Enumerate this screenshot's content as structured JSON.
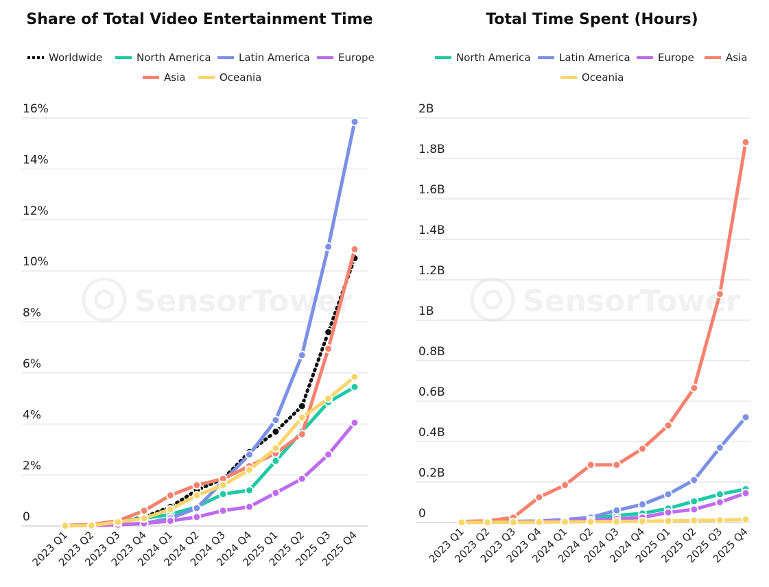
{
  "watermark": "SensorTower",
  "chart_data": [
    {
      "type": "line",
      "title": "Share of Total Video Entertainment Time",
      "xlabel": "",
      "ylabel": "",
      "x": [
        "2023 Q1",
        "2023 Q2",
        "2023 Q3",
        "2023 Q4",
        "2024 Q1",
        "2024 Q2",
        "2024 Q3",
        "2024 Q4",
        "2025 Q1",
        "2025 Q2",
        "2025 Q3",
        "2025 Q4"
      ],
      "ylim": [
        0,
        16
      ],
      "yticks": [
        0,
        2,
        4,
        6,
        8,
        10,
        12,
        14,
        16
      ],
      "ytick_labels": [
        "0",
        "2%",
        "4%",
        "6%",
        "8%",
        "10%",
        "12%",
        "14%",
        "16%"
      ],
      "grid": true,
      "legend_position": "top",
      "series": [
        {
          "name": "Worldwide",
          "color": "#111111",
          "dashed": true,
          "values": [
            0.02,
            0.05,
            0.15,
            0.35,
            0.75,
            1.4,
            1.85,
            2.9,
            3.7,
            4.7,
            7.6,
            10.5
          ]
        },
        {
          "name": "North America",
          "color": "#1ec9a6",
          "values": [
            0.02,
            0.05,
            0.2,
            0.3,
            0.45,
            0.75,
            1.25,
            1.4,
            2.55,
            3.7,
            4.85,
            5.45
          ]
        },
        {
          "name": "Latin America",
          "color": "#7b90e6",
          "values": [
            0.01,
            0.02,
            0.05,
            0.1,
            0.3,
            0.7,
            1.75,
            2.8,
            4.15,
            6.7,
            10.95,
            15.85
          ]
        },
        {
          "name": "Europe",
          "color": "#be6bf0",
          "values": [
            0.01,
            0.02,
            0.05,
            0.1,
            0.2,
            0.35,
            0.6,
            0.75,
            1.3,
            1.85,
            2.8,
            4.05
          ]
        },
        {
          "name": "Asia",
          "color": "#f5826e",
          "values": [
            0.02,
            0.05,
            0.2,
            0.6,
            1.2,
            1.6,
            1.85,
            2.35,
            2.85,
            3.6,
            6.95,
            10.85
          ]
        },
        {
          "name": "Oceania",
          "color": "#fbd56b",
          "values": [
            0.01,
            0.02,
            0.15,
            0.3,
            0.65,
            1.2,
            1.6,
            2.2,
            3.05,
            4.25,
            5.0,
            5.85
          ]
        }
      ]
    },
    {
      "type": "line",
      "title": "Total Time Spent (Hours)",
      "xlabel": "",
      "ylabel": "",
      "x": [
        "2023 Q1",
        "2023 Q2",
        "2023 Q3",
        "2023 Q4",
        "2024 Q1",
        "2024 Q2",
        "2024 Q3",
        "2024 Q4",
        "2025 Q1",
        "2025 Q2",
        "2025 Q3",
        "2025 Q4"
      ],
      "ylim": [
        0,
        2
      ],
      "yticks": [
        0,
        0.2,
        0.4,
        0.6,
        0.8,
        1.0,
        1.2,
        1.4,
        1.6,
        1.8,
        2.0
      ],
      "ytick_labels": [
        "0",
        "0.2B",
        "0.4B",
        "0.6B",
        "0.8B",
        "1B",
        "1.2B",
        "1.4B",
        "1.6B",
        "1.8B",
        "2B"
      ],
      "grid": true,
      "legend_position": "top",
      "series": [
        {
          "name": "North America",
          "color": "#1ec9a6",
          "values": [
            0.002,
            0.003,
            0.005,
            0.007,
            0.01,
            0.02,
            0.035,
            0.045,
            0.07,
            0.105,
            0.14,
            0.165
          ]
        },
        {
          "name": "Latin America",
          "color": "#7b90e6",
          "values": [
            0.002,
            0.003,
            0.005,
            0.007,
            0.015,
            0.025,
            0.06,
            0.09,
            0.14,
            0.21,
            0.37,
            0.52
          ]
        },
        {
          "name": "Europe",
          "color": "#be6bf0",
          "values": [
            0.001,
            0.002,
            0.003,
            0.005,
            0.008,
            0.012,
            0.018,
            0.025,
            0.05,
            0.065,
            0.1,
            0.145
          ]
        },
        {
          "name": "Asia",
          "color": "#f5826e",
          "values": [
            0.005,
            0.008,
            0.025,
            0.125,
            0.185,
            0.285,
            0.285,
            0.365,
            0.48,
            0.665,
            1.13,
            1.88
          ]
        },
        {
          "name": "Oceania",
          "color": "#fbd56b",
          "values": [
            0.001,
            0.001,
            0.002,
            0.002,
            0.003,
            0.004,
            0.005,
            0.006,
            0.008,
            0.01,
            0.012,
            0.015
          ]
        }
      ]
    }
  ]
}
